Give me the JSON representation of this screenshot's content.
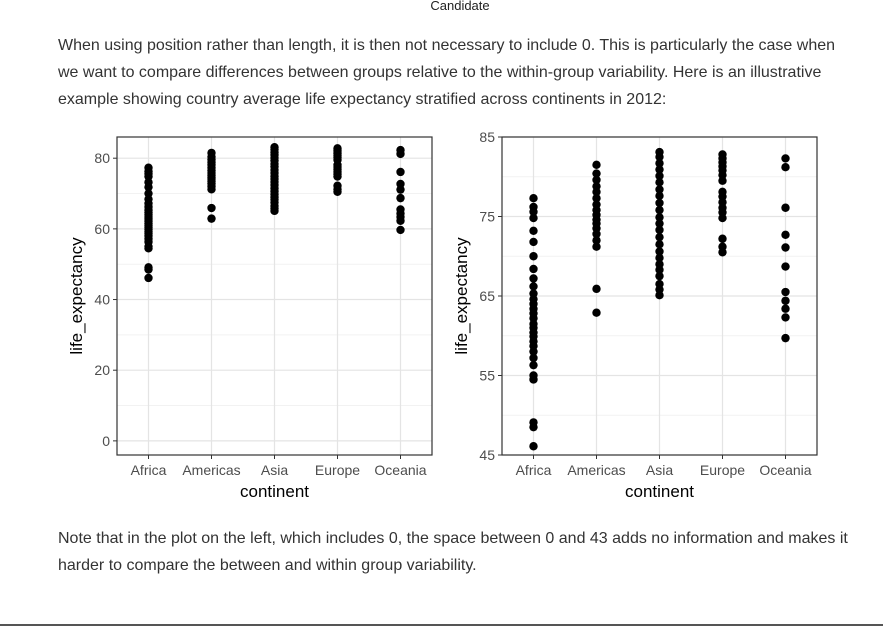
{
  "page": {
    "top_label": "Candidate",
    "paragraph_1": "When using position rather than length, it is then not necessary to include 0. This is particularly the case when we want to compare differences between groups relative to the within-group variability. Here is an illustrative example showing country average life expectancy stratified across continents in 2012:",
    "paragraph_2": "Note that in the plot on the left, which includes 0, the space between 0 and 43 adds no information and makes it harder to compare the between and within group variability."
  },
  "chart_data": [
    {
      "type": "scatter",
      "xlabel": "continent",
      "ylabel": "life_expectancy",
      "categories": [
        "Africa",
        "Americas",
        "Asia",
        "Europe",
        "Oceania"
      ],
      "yticks": [
        0,
        20,
        40,
        60,
        80
      ],
      "ylim": [
        -4,
        86
      ],
      "grid": true,
      "points": {
        "Africa": [
          46.1,
          48.5,
          49.1,
          54.5,
          55,
          56.3,
          57.2,
          58,
          58.7,
          59.3,
          59.9,
          60.4,
          61,
          61.5,
          62.2,
          62.8,
          63.4,
          64,
          64.6,
          65.3,
          66.2,
          67.2,
          68.4,
          70,
          71.8,
          73.2,
          74.8,
          75.6,
          76.2,
          77.3
        ],
        "Americas": [
          62.9,
          65.9,
          71.2,
          72,
          72.8,
          73.5,
          74.1,
          74.6,
          75.2,
          75.8,
          76.5,
          77.3,
          78.1,
          78.8,
          79.6,
          80.4,
          81.5
        ],
        "Asia": [
          65.1,
          65.8,
          66.5,
          67.5,
          68.3,
          69,
          69.8,
          70.6,
          71.5,
          72.4,
          73.3,
          74.1,
          74.9,
          75.8,
          76.7,
          77.6,
          78.4,
          79.3,
          80.1,
          80.9,
          81.7,
          82.5,
          83.1
        ],
        "Europe": [
          70.5,
          71.2,
          72.2,
          74.8,
          75.5,
          76.1,
          76.8,
          77.5,
          78.1,
          79.5,
          80.2,
          80.8,
          81.3,
          81.8,
          82.3,
          82.8
        ],
        "Oceania": [
          59.7,
          62.3,
          63.4,
          64.4,
          65.5,
          68.7,
          71.1,
          72.7,
          76.1,
          81.2,
          82.3
        ]
      }
    },
    {
      "type": "scatter",
      "xlabel": "continent",
      "ylabel": "life_expectancy",
      "categories": [
        "Africa",
        "Americas",
        "Asia",
        "Europe",
        "Oceania"
      ],
      "yticks": [
        45,
        55,
        65,
        75,
        85
      ],
      "ylim": [
        45,
        85
      ],
      "grid": true,
      "points": {
        "Africa": [
          46.1,
          48.5,
          49.1,
          54.5,
          55,
          56.3,
          57.2,
          58,
          58.7,
          59.3,
          59.9,
          60.4,
          61,
          61.5,
          62.2,
          62.8,
          63.4,
          64,
          64.6,
          65.3,
          66.2,
          67.2,
          68.4,
          70,
          71.8,
          73.2,
          74.8,
          75.6,
          76.2,
          77.3
        ],
        "Americas": [
          62.9,
          65.9,
          71.2,
          72,
          72.8,
          73.5,
          74.1,
          74.6,
          75.2,
          75.8,
          76.5,
          77.3,
          78.1,
          78.8,
          79.6,
          80.4,
          81.5
        ],
        "Asia": [
          65.1,
          65.8,
          66.5,
          67.5,
          68.3,
          69,
          69.8,
          70.6,
          71.5,
          72.4,
          73.3,
          74.1,
          74.9,
          75.8,
          76.7,
          77.6,
          78.4,
          79.3,
          80.1,
          80.9,
          81.7,
          82.5,
          83.1
        ],
        "Europe": [
          70.5,
          71.2,
          72.2,
          74.8,
          75.5,
          76.1,
          76.8,
          77.5,
          78.1,
          79.5,
          80.2,
          80.8,
          81.3,
          81.8,
          82.3,
          82.8
        ],
        "Oceania": [
          59.7,
          62.3,
          63.4,
          64.4,
          65.5,
          68.7,
          71.1,
          72.7,
          76.1,
          81.2,
          82.3
        ]
      }
    }
  ]
}
